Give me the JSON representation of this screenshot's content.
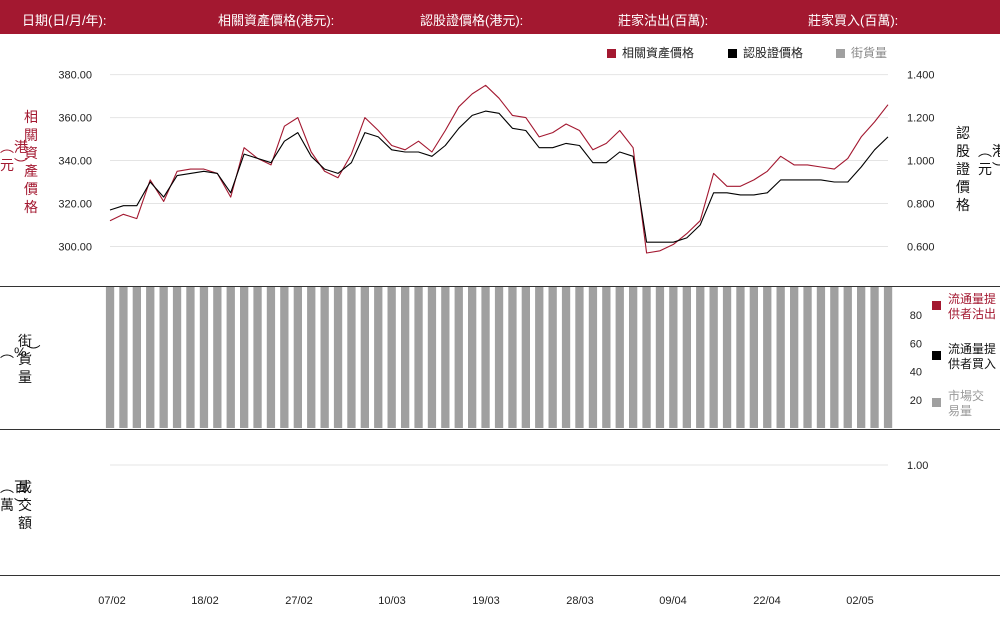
{
  "header": {
    "date_label": "日期(日/月/年):",
    "underlying_label": "相關資產價格(港元):",
    "warrant_label": "認股證價格(港元):",
    "lp_sell_label": "莊家沽出(百萬):",
    "lp_buy_label": "莊家買入(百萬):"
  },
  "legend": {
    "underlying": "相關資產價格",
    "warrant": "認股證價格",
    "outstanding": "街貨量"
  },
  "colors": {
    "header": "#a31830",
    "underlying": "#a31830",
    "warrant": "#000000",
    "outstanding": "#a0a0a0"
  },
  "axis_labels": {
    "left_top": "相關資產價格",
    "left_top_unit": "港元",
    "right_top": "認股證價格",
    "right_top_unit": "港元",
    "mid": "街貨量",
    "mid_unit": "%",
    "bottom": "成交額",
    "bottom_unit": "百萬"
  },
  "side_legend": {
    "lp_sell": "流通量提供者沽出",
    "lp_buy": "流通量提供者買入",
    "market": "市場交易量"
  },
  "chart_data": [
    {
      "type": "line",
      "x_ticks": [
        "07/02",
        "18/02",
        "27/02",
        "10/03",
        "19/03",
        "28/03",
        "09/04",
        "22/04",
        "02/05"
      ],
      "y_left_ticks": [
        "300.00",
        "320.00",
        "340.00",
        "360.00",
        "380.00"
      ],
      "y_right_ticks": [
        "0.600",
        "0.800",
        "1.000",
        "1.200",
        "1.400"
      ],
      "ylim_left": [
        290,
        384
      ],
      "ylim_right": [
        0.5,
        1.44
      ],
      "series": [
        {
          "name": "相關資產價格",
          "axis": "left",
          "values": [
            312,
            315,
            313,
            331,
            321,
            335,
            336,
            336,
            334,
            323,
            346,
            341,
            338,
            356,
            360,
            344,
            335,
            332,
            343,
            360,
            354,
            347,
            345,
            349,
            344,
            354,
            365,
            371,
            375,
            369,
            361,
            360,
            351,
            353,
            357,
            354,
            345,
            348,
            354,
            346,
            297,
            298,
            301,
            306,
            312,
            334,
            328,
            328,
            331,
            335,
            342,
            338,
            338,
            337,
            336,
            341,
            351,
            358,
            366
          ]
        },
        {
          "name": "認股證價格",
          "axis": "right",
          "values": [
            0.77,
            0.79,
            0.79,
            0.9,
            0.83,
            0.93,
            0.94,
            0.95,
            0.94,
            0.85,
            1.03,
            1.01,
            0.99,
            1.09,
            1.13,
            1.02,
            0.96,
            0.94,
            0.99,
            1.13,
            1.11,
            1.05,
            1.04,
            1.04,
            1.02,
            1.07,
            1.15,
            1.21,
            1.23,
            1.22,
            1.15,
            1.14,
            1.06,
            1.06,
            1.08,
            1.07,
            0.99,
            0.99,
            1.04,
            1.02,
            0.62,
            0.62,
            0.62,
            0.64,
            0.7,
            0.85,
            0.85,
            0.84,
            0.84,
            0.85,
            0.91,
            0.91,
            0.91,
            0.91,
            0.9,
            0.9,
            0.97,
            1.05,
            1.11
          ]
        }
      ]
    },
    {
      "type": "bar",
      "y_ticks": [
        "20",
        "40",
        "60",
        "80"
      ],
      "ylim": [
        0,
        100
      ],
      "bar_count": 59,
      "values": [
        100,
        100,
        100,
        100,
        100,
        100,
        100,
        100,
        100,
        100,
        100,
        100,
        100,
        100,
        100,
        100,
        100,
        100,
        100,
        100,
        100,
        100,
        100,
        100,
        100,
        100,
        100,
        100,
        100,
        100,
        100,
        100,
        100,
        100,
        100,
        100,
        100,
        100,
        100,
        100,
        100,
        100,
        100,
        100,
        100,
        100,
        100,
        100,
        100,
        100,
        100,
        100,
        100,
        100,
        100,
        100,
        100,
        100,
        100
      ]
    },
    {
      "type": "bar",
      "y_ticks": [
        "1.00"
      ],
      "values": []
    }
  ]
}
